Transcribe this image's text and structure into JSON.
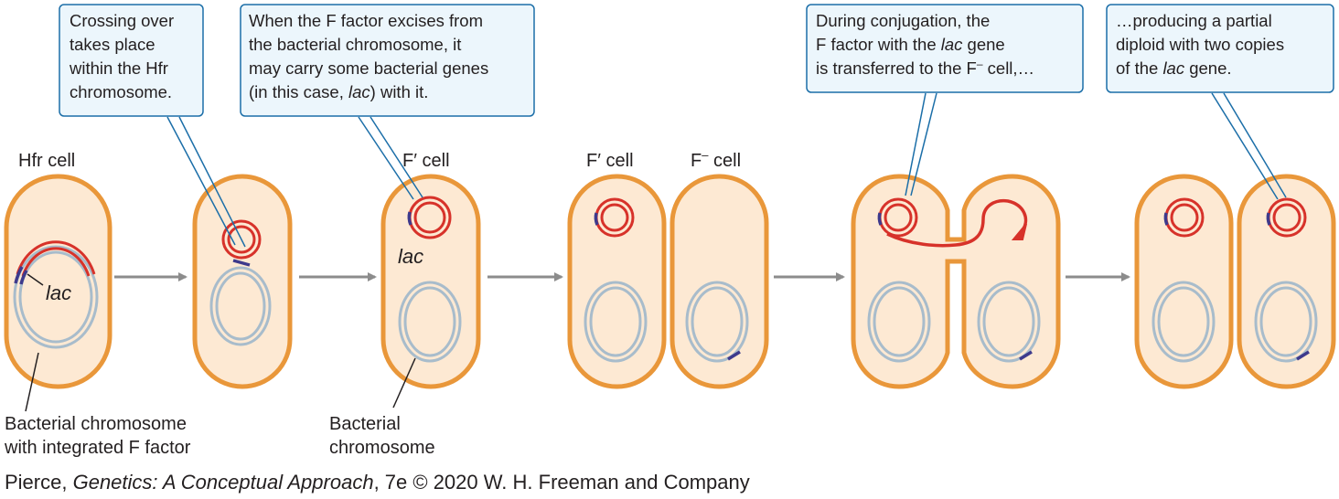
{
  "colors": {
    "cell_fill": "#fde9d3",
    "cell_border": "#e9973a",
    "f_factor": "#d7322a",
    "chromosome": "#a8bccb",
    "lac_gene": "#3e3a8c",
    "arrow": "#8c8c8c",
    "callout_fill": "#ecf6fc",
    "callout_border": "#1b6ea8"
  },
  "callouts": {
    "crossing": [
      "Crossing over",
      "takes place",
      "within the Hfr",
      "chromosome."
    ],
    "excision": [
      "When the F factor excises from",
      "the bacterial chromosome, it",
      "may carry some bacterial genes"
    ],
    "excision_last": {
      "pre": "(in this case, ",
      "em": "lac",
      "post": ") with it."
    },
    "conjugation1": "During conjugation, the",
    "conjugation2": {
      "pre": "F factor with the ",
      "em": "lac",
      "post": " gene"
    },
    "conjugation3": {
      "pre": "is transferred to the F",
      "sup": "–",
      "post": " cell,…"
    },
    "diploid1": "…producing a partial",
    "diploid2": "diploid with two copies",
    "diploid3": {
      "pre": "of the ",
      "em": "lac",
      "post": " gene."
    }
  },
  "cell_labels": {
    "hfr": "Hfr cell",
    "fprime_a": "F′ cell",
    "fprime_b": "F′ cell",
    "fminus_pre": "F",
    "fminus_sup": "–",
    "fminus_post": " cell"
  },
  "gene_label": "lac",
  "annotations": {
    "integrated": [
      "Bacterial chromosome",
      "with integrated F factor"
    ],
    "bacterial": [
      "Bacterial",
      "chromosome"
    ]
  },
  "credit": {
    "pre": "Pierce, ",
    "em": "Genetics: A Conceptual Approach",
    "post": ", 7e © 2020 W. H. Freeman and Company"
  }
}
